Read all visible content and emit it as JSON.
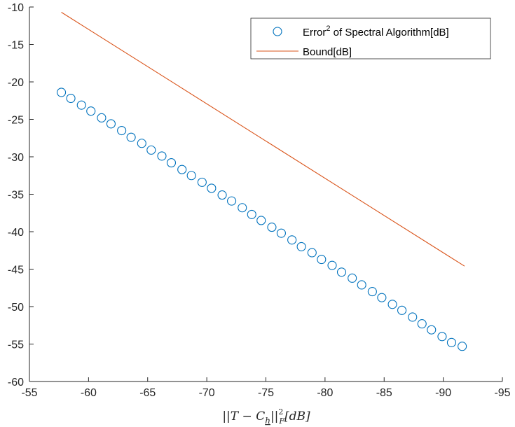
{
  "chart_data": {
    "type": "scatter",
    "xlabel": "||T - C_h||_F^2 [dB]",
    "xlabel_parts": {
      "lead": "||",
      "T": "T",
      "minus": " − ",
      "C": "C",
      "sub": "h",
      "mid": "||",
      "sup": "2",
      "subF": "F",
      "tail": "[dB]"
    },
    "ylabel": "",
    "title": "",
    "xlim": [
      -55,
      -95
    ],
    "ylim": [
      -60,
      -10
    ],
    "x_reversed": true,
    "xticks": [
      -55,
      -60,
      -65,
      -70,
      -75,
      -80,
      -85,
      -90,
      -95
    ],
    "yticks": [
      -10,
      -15,
      -20,
      -25,
      -30,
      -35,
      -40,
      -45,
      -50,
      -55,
      -60
    ],
    "grid": false,
    "legend_position": "top-right",
    "legend": {
      "entries": [
        {
          "text_before": "Error",
          "superscript": "2",
          "text_after": " of Spectral Algorithm[dB]",
          "marker": "circle"
        },
        {
          "text_before": "Bound[dB]",
          "superscript": "",
          "text_after": "",
          "marker": "line"
        }
      ]
    },
    "series": [
      {
        "name": "Error² of Spectral Algorithm[dB]",
        "style": "markers",
        "marker": "circle",
        "color": "#0072BD",
        "x": [
          -57.7,
          -58.5,
          -59.4,
          -60.2,
          -61.1,
          -61.9,
          -62.8,
          -63.6,
          -64.5,
          -65.3,
          -66.2,
          -67.0,
          -67.9,
          -68.7,
          -69.6,
          -70.4,
          -71.3,
          -72.1,
          -73.0,
          -73.8,
          -74.6,
          -75.5,
          -76.3,
          -77.2,
          -78.0,
          -78.9,
          -79.7,
          -80.6,
          -81.4,
          -82.3,
          -83.1,
          -84.0,
          -84.8,
          -85.7,
          -86.5,
          -87.4,
          -88.2,
          -89.0,
          -89.9,
          -90.7,
          -91.6
        ],
        "y": [
          -21.4,
          -22.2,
          -23.1,
          -23.9,
          -24.8,
          -25.6,
          -26.5,
          -27.4,
          -28.2,
          -29.1,
          -29.9,
          -30.8,
          -31.7,
          -32.5,
          -33.4,
          -34.2,
          -35.1,
          -35.9,
          -36.8,
          -37.7,
          -38.5,
          -39.4,
          -40.2,
          -41.1,
          -42.0,
          -42.8,
          -43.7,
          -44.5,
          -45.4,
          -46.2,
          -47.1,
          -48.0,
          -48.8,
          -49.7,
          -50.5,
          -51.4,
          -52.3,
          -53.1,
          -54.0,
          -54.8,
          -55.3
        ]
      },
      {
        "name": "Bound[dB]",
        "style": "line",
        "color": "#D95319",
        "x": [
          -57.7,
          -91.8
        ],
        "y": [
          -10.7,
          -44.6
        ]
      }
    ]
  }
}
